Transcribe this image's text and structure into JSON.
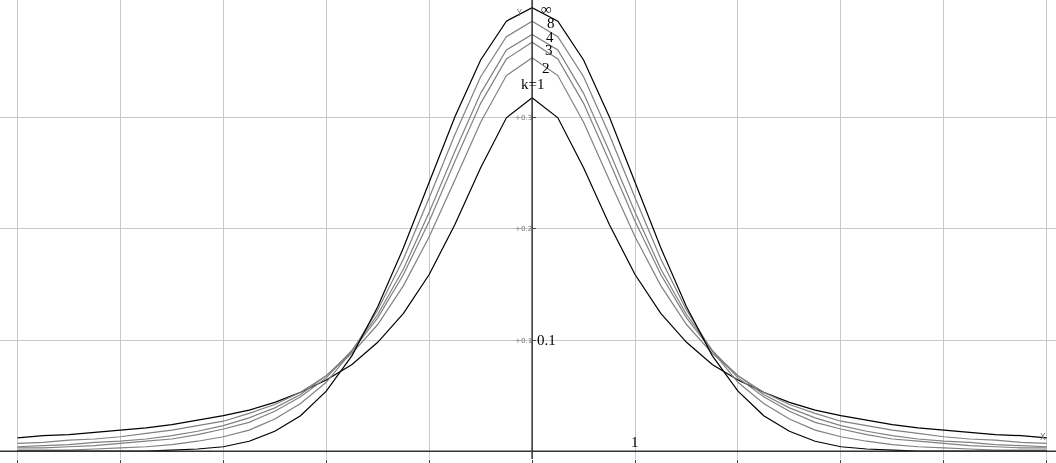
{
  "chart_data": {
    "type": "line",
    "xlabel": "X",
    "ylabel": "Y",
    "categories": [
      null,
      null,
      null,
      null,
      null,
      null,
      null,
      null,
      null,
      null,
      null,
      null,
      null,
      null,
      null,
      null,
      null,
      null,
      null,
      null,
      null,
      null,
      null,
      null,
      null,
      null,
      null,
      null,
      null,
      null,
      null,
      null,
      null,
      null,
      null,
      null,
      null,
      null,
      null,
      null,
      null
    ],
    "series": [
      {
        "color": "#000000",
        "values": [
          0.012,
          0.014,
          0.015,
          0.017,
          0.019,
          0.021,
          0.024,
          0.028,
          0.032,
          0.037,
          0.044,
          0.053,
          0.064,
          0.078,
          0.098,
          0.124,
          0.159,
          0.204,
          0.255,
          0.3,
          0.318,
          0.3,
          0.255,
          0.204,
          0.159,
          0.124,
          0.098,
          0.078,
          0.064,
          0.053,
          0.044,
          0.037,
          0.032,
          0.028,
          0.024,
          0.021,
          0.019,
          0.017,
          0.015,
          0.014,
          0.012
        ]
      },
      {
        "color": "#808080",
        "values": [
          0.007,
          0.008,
          0.01,
          0.011,
          0.013,
          0.016,
          0.019,
          0.023,
          0.027,
          0.034,
          0.042,
          0.053,
          0.068,
          0.088,
          0.114,
          0.149,
          0.193,
          0.244,
          0.296,
          0.338,
          0.354,
          0.338,
          0.296,
          0.244,
          0.193,
          0.149,
          0.114,
          0.088,
          0.068,
          0.053,
          0.042,
          0.034,
          0.027,
          0.023,
          0.019,
          0.016,
          0.013,
          0.011,
          0.01,
          0.008,
          0.007
        ]
      },
      {
        "color": "#808080",
        "values": [
          0.004,
          0.005,
          0.006,
          0.008,
          0.009,
          0.011,
          0.014,
          0.018,
          0.023,
          0.03,
          0.039,
          0.051,
          0.068,
          0.09,
          0.12,
          0.159,
          0.207,
          0.261,
          0.313,
          0.353,
          0.368,
          0.353,
          0.313,
          0.261,
          0.207,
          0.159,
          0.12,
          0.09,
          0.068,
          0.051,
          0.039,
          0.03,
          0.023,
          0.018,
          0.014,
          0.011,
          0.009,
          0.008,
          0.006,
          0.005,
          0.004
        ]
      },
      {
        "color": "#808080",
        "values": [
          0.003,
          0.003,
          0.004,
          0.005,
          0.007,
          0.009,
          0.011,
          0.015,
          0.02,
          0.026,
          0.036,
          0.049,
          0.066,
          0.091,
          0.123,
          0.164,
          0.215,
          0.27,
          0.322,
          0.361,
          0.375,
          0.361,
          0.322,
          0.27,
          0.215,
          0.164,
          0.123,
          0.091,
          0.066,
          0.049,
          0.036,
          0.026,
          0.02,
          0.015,
          0.011,
          0.009,
          0.007,
          0.005,
          0.004,
          0.003,
          0.003
        ]
      },
      {
        "color": "#808080",
        "values": [
          0.001,
          0.001,
          0.001,
          0.002,
          0.003,
          0.004,
          0.006,
          0.009,
          0.013,
          0.019,
          0.029,
          0.043,
          0.062,
          0.09,
          0.127,
          0.173,
          0.228,
          0.285,
          0.337,
          0.373,
          0.387,
          0.373,
          0.337,
          0.285,
          0.228,
          0.173,
          0.127,
          0.09,
          0.062,
          0.043,
          0.029,
          0.019,
          0.013,
          0.009,
          0.006,
          0.004,
          0.003,
          0.002,
          0.001,
          0.001,
          0.001
        ]
      },
      {
        "color": "#000000",
        "values": [
          0.0,
          0.0,
          0.0,
          0.0,
          0.0,
          0.0,
          0.001,
          0.002,
          0.004,
          0.009,
          0.018,
          0.032,
          0.054,
          0.086,
          0.13,
          0.183,
          0.242,
          0.301,
          0.352,
          0.387,
          0.399,
          0.387,
          0.352,
          0.301,
          0.242,
          0.183,
          0.13,
          0.086,
          0.054,
          0.032,
          0.018,
          0.009,
          0.004,
          0.002,
          0.001,
          0.0,
          0.0,
          0.0,
          0.0,
          0.0,
          0.0
        ]
      }
    ],
    "annotations": [
      "∞",
      "8",
      "4",
      "3",
      "2",
      "k=1",
      "0.1",
      "1"
    ],
    "ylim": [
      -0.007,
      0.406
    ],
    "yticks": [
      {
        "value": 0.1,
        "label": "+0.1"
      },
      {
        "value": 0.2,
        "label": "+0.2"
      },
      {
        "value": 0.3,
        "label": "+0.3"
      }
    ],
    "tick_labels": "y",
    "grid": true,
    "marker": "none",
    "line_style": "solid"
  }
}
